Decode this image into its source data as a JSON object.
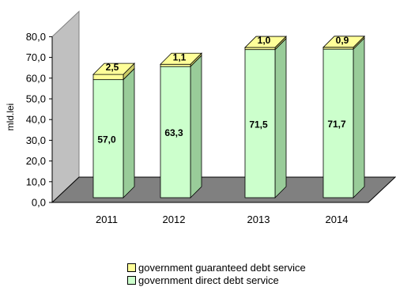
{
  "chart_data": {
    "type": "bar",
    "stacked": true,
    "three_d": true,
    "categories": [
      "2011",
      "2012",
      "2013",
      "2014"
    ],
    "series": [
      {
        "name": "government direct debt service",
        "values": [
          57.0,
          63.3,
          71.5,
          71.7
        ],
        "color": "#ccffcc"
      },
      {
        "name": "government guaranteed debt service",
        "values": [
          2.5,
          1.1,
          1.0,
          0.9
        ],
        "color": "#ffff99"
      }
    ],
    "value_labels": [
      [
        "57,0",
        "63,3",
        "71,5",
        "71,7"
      ],
      [
        "2,5",
        "1,1",
        "1,0",
        "0,9"
      ]
    ],
    "ylabel": "mld.lei",
    "ylim": [
      0,
      80
    ],
    "yticks": [
      "0,0",
      "10,0",
      "20,0",
      "30,0",
      "40,0",
      "50,0",
      "60,0",
      "70,0",
      "80,0"
    ],
    "grid": false,
    "legend_position": "bottom",
    "wall_color": "#c0c0c0",
    "floor_color": "#808080"
  }
}
